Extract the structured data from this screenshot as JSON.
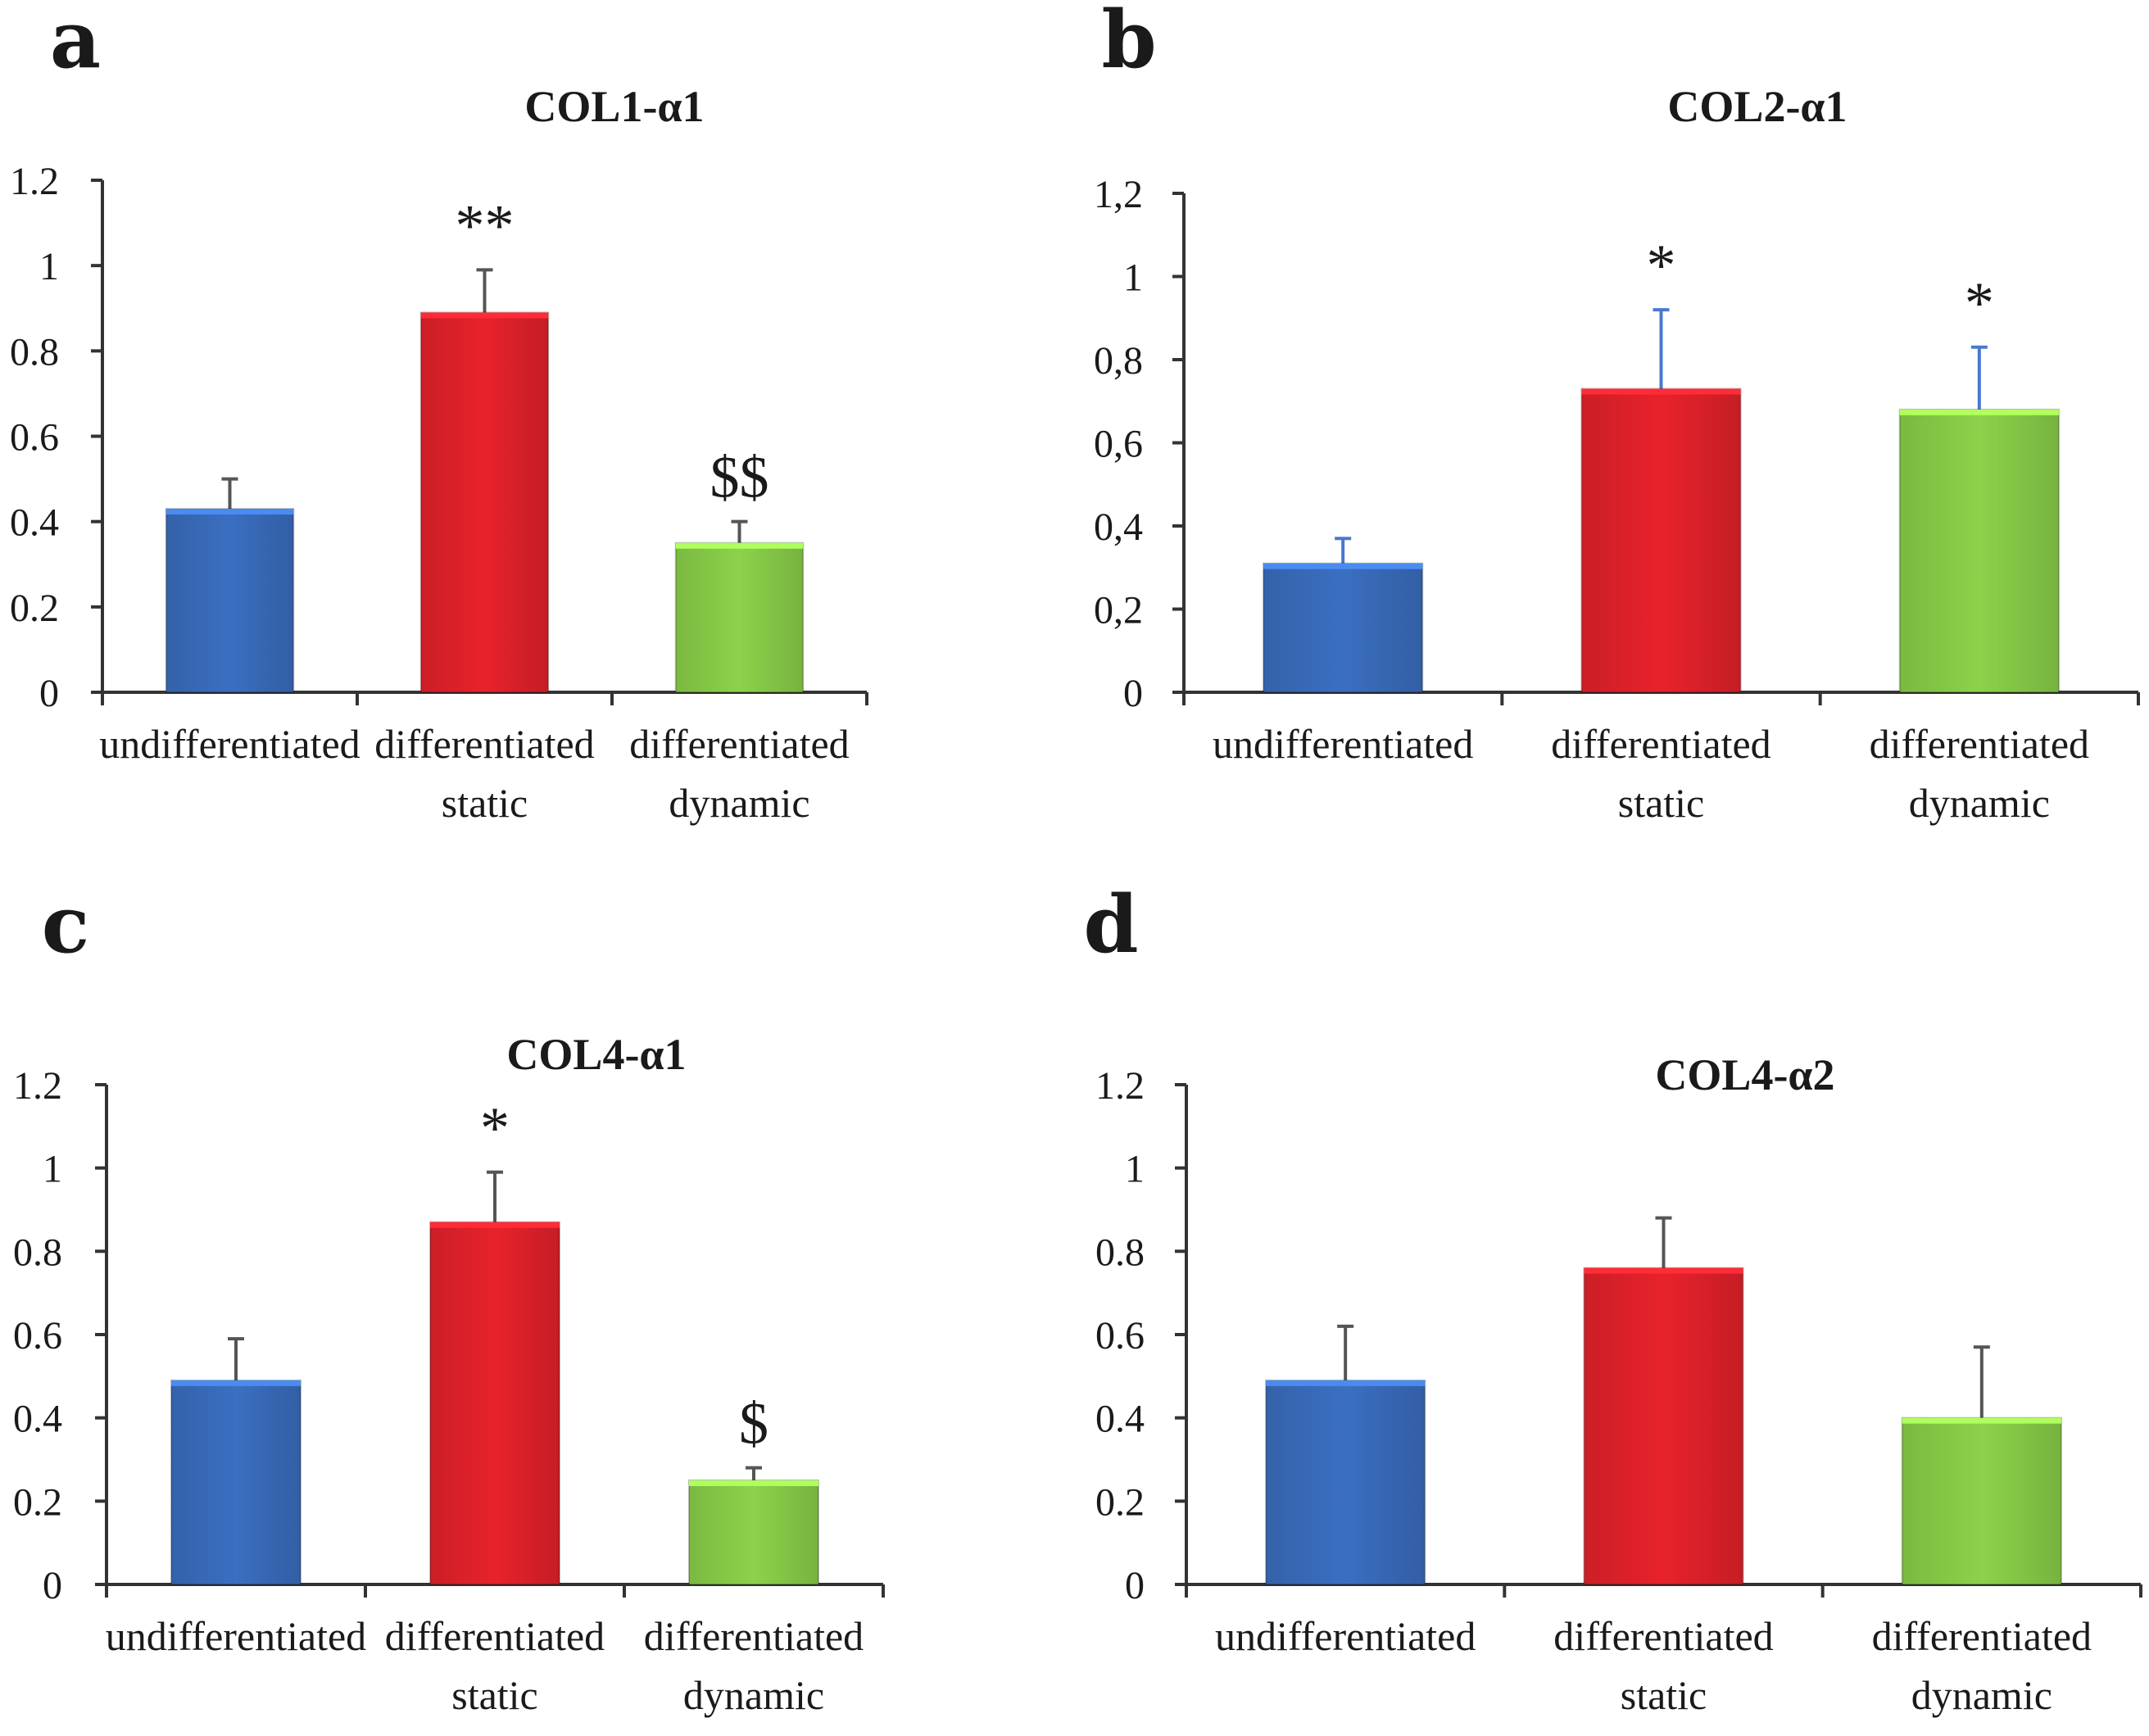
{
  "chart_data": [
    {
      "type": "bar",
      "panel": "a",
      "title": "COL1-α1",
      "categories": [
        [
          "undifferentiated"
        ],
        [
          "differentiated",
          "static"
        ],
        [
          "differentiated",
          "dynamic"
        ]
      ],
      "values": [
        0.43,
        0.89,
        0.35
      ],
      "errors": [
        0.07,
        0.1,
        0.05
      ],
      "annotations": [
        "",
        "**",
        "$$"
      ],
      "colors": [
        "#3b6fc1",
        "#e8222b",
        "#8cd24a"
      ],
      "error_color": "#555555",
      "yticks": [
        "0",
        "0.2",
        "0.4",
        "0.6",
        "0.8",
        "1",
        "1.2"
      ],
      "ylim": [
        0,
        1.2
      ]
    },
    {
      "type": "bar",
      "panel": "b",
      "title": "COL2-α1",
      "categories": [
        [
          "undifferentiated"
        ],
        [
          "differentiated",
          "static"
        ],
        [
          "differentiated",
          "dynamic"
        ]
      ],
      "values": [
        0.31,
        0.73,
        0.68
      ],
      "errors": [
        0.06,
        0.19,
        0.15
      ],
      "annotations": [
        "",
        "*",
        "*"
      ],
      "colors": [
        "#3b6fc1",
        "#e8222b",
        "#8cd24a"
      ],
      "error_color": "#4a78d0",
      "yticks": [
        "0",
        "0,2",
        "0,4",
        "0,6",
        "0,8",
        "1",
        "1,2"
      ],
      "ylim": [
        0,
        1.2
      ]
    },
    {
      "type": "bar",
      "panel": "c",
      "title": "COL4-α1",
      "categories": [
        [
          "undifferentiated"
        ],
        [
          "differentiated",
          "static"
        ],
        [
          "differentiated",
          "dynamic"
        ]
      ],
      "values": [
        0.49,
        0.87,
        0.25
      ],
      "errors": [
        0.1,
        0.12,
        0.03
      ],
      "annotations": [
        "",
        "*",
        "$"
      ],
      "colors": [
        "#3b6fc1",
        "#e8222b",
        "#8cd24a"
      ],
      "error_color": "#555555",
      "yticks": [
        "0",
        "0.2",
        "0.4",
        "0.6",
        "0.8",
        "1",
        "1.2"
      ],
      "ylim": [
        0,
        1.2
      ]
    },
    {
      "type": "bar",
      "panel": "d",
      "title": "COL4-α2",
      "categories": [
        [
          "undifferentiated"
        ],
        [
          "differentiated",
          "static"
        ],
        [
          "differentiated",
          "dynamic"
        ]
      ],
      "values": [
        0.49,
        0.76,
        0.4
      ],
      "errors": [
        0.13,
        0.12,
        0.17
      ],
      "annotations": [
        "",
        "",
        ""
      ],
      "colors": [
        "#3b6fc1",
        "#e8222b",
        "#8cd24a"
      ],
      "error_color": "#555555",
      "yticks": [
        "0",
        "0.2",
        "0.4",
        "0.6",
        "0.8",
        "1",
        "1.2"
      ],
      "ylim": [
        0,
        1.2
      ]
    }
  ]
}
